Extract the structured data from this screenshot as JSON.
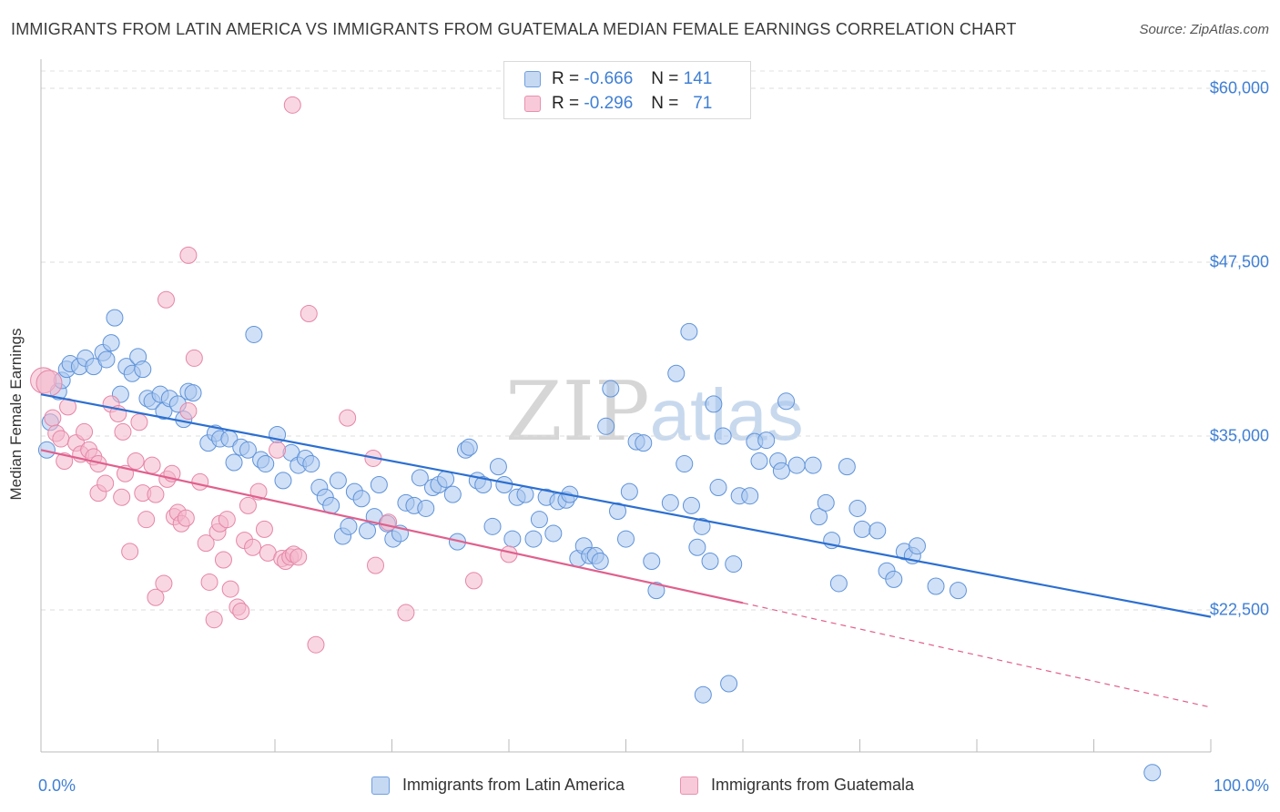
{
  "header": {
    "title": "IMMIGRANTS FROM LATIN AMERICA VS IMMIGRANTS FROM GUATEMALA MEDIAN FEMALE EARNINGS CORRELATION CHART",
    "source": "Source: ZipAtlas.com"
  },
  "watermark": {
    "part1": "ZIP",
    "part2": "atlas"
  },
  "legend": {
    "row1": {
      "r_label": "R =",
      "r_value": "-0.666",
      "n_label": "N =",
      "n_value": "141"
    },
    "row2": {
      "r_label": "R =",
      "r_value": "-0.296",
      "n_label": "N =",
      "n_value": "71"
    }
  },
  "colors": {
    "blue": "#3f7fd4",
    "blue_fill": "#a9c6ee",
    "pink": "#e8709b",
    "pink_fill": "#f4b6cb"
  },
  "chart_data": {
    "type": "scatter",
    "ylabel": "Median Female Earnings",
    "x_tick_labels": [
      "0.0%",
      "100.0%"
    ],
    "y_tick_labels": [
      "$60,000",
      "$47,500",
      "$35,000",
      "$22,500"
    ],
    "y_ticks": [
      60000,
      47500,
      35000,
      22500
    ],
    "xlim": [
      0,
      100
    ],
    "ylim": [
      10000,
      61000
    ],
    "grid": true,
    "series": [
      {
        "name": "Immigrants from Latin America",
        "color": "#3f7fd4",
        "trend": {
          "x": [
            0,
            100
          ],
          "y": [
            38000,
            22000
          ]
        },
        "points": [
          [
            0.5,
            34000
          ],
          [
            0.8,
            36000
          ],
          [
            1.5,
            38200
          ],
          [
            1.8,
            39000
          ],
          [
            2.2,
            39800
          ],
          [
            2.5,
            40200
          ],
          [
            3.3,
            40000
          ],
          [
            3.8,
            40600
          ],
          [
            4.5,
            40000
          ],
          [
            5.3,
            41000
          ],
          [
            5.6,
            40500
          ],
          [
            6,
            41700
          ],
          [
            6.3,
            43500
          ],
          [
            6.8,
            38000
          ],
          [
            7.3,
            40000
          ],
          [
            7.8,
            39500
          ],
          [
            8.3,
            40700
          ],
          [
            8.7,
            39800
          ],
          [
            9.1,
            37700
          ],
          [
            9.5,
            37500
          ],
          [
            10.2,
            38000
          ],
          [
            10.5,
            36800
          ],
          [
            11,
            37700
          ],
          [
            11.7,
            37300
          ],
          [
            12.2,
            36200
          ],
          [
            12.6,
            38200
          ],
          [
            13,
            38100
          ],
          [
            14.3,
            34500
          ],
          [
            14.9,
            35200
          ],
          [
            15.3,
            34800
          ],
          [
            16.1,
            34800
          ],
          [
            16.5,
            33100
          ],
          [
            17.1,
            34200
          ],
          [
            17.7,
            34000
          ],
          [
            18.2,
            42300
          ],
          [
            18.8,
            33300
          ],
          [
            19.2,
            33000
          ],
          [
            20.2,
            35100
          ],
          [
            20.7,
            31800
          ],
          [
            21.4,
            33800
          ],
          [
            22,
            32900
          ],
          [
            22.6,
            33400
          ],
          [
            23.1,
            33000
          ],
          [
            23.8,
            31300
          ],
          [
            24.3,
            30600
          ],
          [
            24.8,
            30000
          ],
          [
            25.4,
            31800
          ],
          [
            25.8,
            27800
          ],
          [
            26.3,
            28500
          ],
          [
            26.8,
            31000
          ],
          [
            27.4,
            30500
          ],
          [
            27.9,
            28200
          ],
          [
            28.5,
            29200
          ],
          [
            28.9,
            31500
          ],
          [
            29.6,
            28700
          ],
          [
            30.1,
            27600
          ],
          [
            30.7,
            28000
          ],
          [
            31.2,
            30200
          ],
          [
            31.9,
            30000
          ],
          [
            32.4,
            32000
          ],
          [
            32.9,
            29800
          ],
          [
            33.5,
            31300
          ],
          [
            34,
            31500
          ],
          [
            34.6,
            31900
          ],
          [
            35.2,
            30800
          ],
          [
            35.6,
            27400
          ],
          [
            36.3,
            34000
          ],
          [
            36.6,
            34200
          ],
          [
            37.3,
            31800
          ],
          [
            37.8,
            31500
          ],
          [
            38.6,
            28500
          ],
          [
            39.1,
            32800
          ],
          [
            39.6,
            31500
          ],
          [
            40.3,
            27600
          ],
          [
            40.7,
            30600
          ],
          [
            41.4,
            30800
          ],
          [
            42.1,
            27600
          ],
          [
            42.6,
            29000
          ],
          [
            43.2,
            30600
          ],
          [
            43.8,
            28000
          ],
          [
            44.2,
            30300
          ],
          [
            44.9,
            30400
          ],
          [
            45.2,
            30800
          ],
          [
            45.9,
            26200
          ],
          [
            46.4,
            27100
          ],
          [
            46.9,
            26400
          ],
          [
            47.4,
            26400
          ],
          [
            47.8,
            26000
          ],
          [
            48.3,
            35700
          ],
          [
            48.7,
            38400
          ],
          [
            49.3,
            29600
          ],
          [
            50,
            27600
          ],
          [
            50.3,
            31000
          ],
          [
            50.9,
            34600
          ],
          [
            51.5,
            34500
          ],
          [
            52.2,
            26000
          ],
          [
            52.6,
            23900
          ],
          [
            53.8,
            30200
          ],
          [
            54.3,
            39500
          ],
          [
            55,
            33000
          ],
          [
            55.4,
            42500
          ],
          [
            55.6,
            30000
          ],
          [
            56.1,
            27000
          ],
          [
            56.5,
            28500
          ],
          [
            57.2,
            26000
          ],
          [
            57.5,
            37300
          ],
          [
            57.9,
            31300
          ],
          [
            58.3,
            35000
          ],
          [
            59.2,
            25800
          ],
          [
            59.7,
            30700
          ],
          [
            60.6,
            30700
          ],
          [
            61,
            34600
          ],
          [
            61.4,
            33200
          ],
          [
            62,
            34700
          ],
          [
            63,
            33200
          ],
          [
            63.3,
            32500
          ],
          [
            63.7,
            37500
          ],
          [
            64.6,
            32900
          ],
          [
            66,
            32900
          ],
          [
            66.5,
            29200
          ],
          [
            67.1,
            30200
          ],
          [
            67.6,
            27500
          ],
          [
            68.2,
            24400
          ],
          [
            68.9,
            32800
          ],
          [
            69.8,
            29800
          ],
          [
            70.2,
            28300
          ],
          [
            71.5,
            28200
          ],
          [
            72.3,
            25300
          ],
          [
            72.9,
            24700
          ],
          [
            73.8,
            26700
          ],
          [
            74.5,
            26400
          ],
          [
            74.9,
            27100
          ],
          [
            76.5,
            24200
          ],
          [
            78.4,
            23900
          ],
          [
            56.6,
            16400
          ],
          [
            58.8,
            17200
          ],
          [
            95,
            10800
          ]
        ]
      },
      {
        "name": "Immigrants from Guatemala",
        "color": "#e8709b",
        "trend": {
          "x": [
            0,
            60,
            100
          ],
          "y": [
            34000,
            23000,
            15500
          ]
        },
        "points": [
          [
            0.2,
            39000
          ],
          [
            0.7,
            38800
          ],
          [
            1,
            36300
          ],
          [
            1.3,
            35200
          ],
          [
            1.7,
            34800
          ],
          [
            2,
            33200
          ],
          [
            2.3,
            37100
          ],
          [
            3,
            34500
          ],
          [
            3.4,
            33700
          ],
          [
            3.7,
            35300
          ],
          [
            4.1,
            34000
          ],
          [
            4.5,
            33500
          ],
          [
            4.9,
            33000
          ],
          [
            4.9,
            30900
          ],
          [
            5.5,
            31600
          ],
          [
            6,
            37300
          ],
          [
            6.6,
            36600
          ],
          [
            7,
            35300
          ],
          [
            6.9,
            30600
          ],
          [
            7.2,
            32300
          ],
          [
            7.6,
            26700
          ],
          [
            8.1,
            33200
          ],
          [
            8.4,
            36000
          ],
          [
            8.7,
            30900
          ],
          [
            9,
            29000
          ],
          [
            9.5,
            32900
          ],
          [
            9.8,
            30800
          ],
          [
            9.8,
            23400
          ],
          [
            10.5,
            24400
          ],
          [
            10.8,
            31900
          ],
          [
            11.2,
            32300
          ],
          [
            11.4,
            29200
          ],
          [
            11.7,
            29500
          ],
          [
            12,
            28700
          ],
          [
            12.4,
            29100
          ],
          [
            12.6,
            36800
          ],
          [
            13.1,
            40600
          ],
          [
            13.6,
            31700
          ],
          [
            14.1,
            27300
          ],
          [
            14.4,
            24500
          ],
          [
            14.8,
            21800
          ],
          [
            15.1,
            28100
          ],
          [
            15.3,
            28700
          ],
          [
            15.6,
            26100
          ],
          [
            15.9,
            29000
          ],
          [
            16.2,
            24000
          ],
          [
            16.8,
            22700
          ],
          [
            17.1,
            22400
          ],
          [
            17.4,
            27500
          ],
          [
            17.7,
            30000
          ],
          [
            18.1,
            27000
          ],
          [
            18.6,
            31000
          ],
          [
            19.1,
            28300
          ],
          [
            19.4,
            26600
          ],
          [
            20.2,
            34000
          ],
          [
            20.6,
            26200
          ],
          [
            20.9,
            26000
          ],
          [
            21.3,
            26300
          ],
          [
            21.6,
            26500
          ],
          [
            22,
            26300
          ],
          [
            21.5,
            58800
          ],
          [
            22.9,
            43800
          ],
          [
            23.5,
            20000
          ],
          [
            12.6,
            48000
          ],
          [
            10.7,
            44800
          ],
          [
            26.2,
            36300
          ],
          [
            28.4,
            33400
          ],
          [
            28.6,
            25700
          ],
          [
            29.7,
            28800
          ],
          [
            31.2,
            22300
          ],
          [
            37,
            24600
          ],
          [
            40,
            26500
          ]
        ]
      }
    ]
  }
}
